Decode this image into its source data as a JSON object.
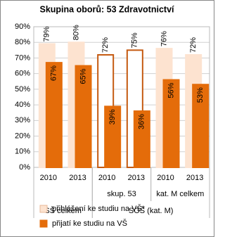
{
  "chart_data": {
    "type": "bar",
    "title": "Skupina oborů: 53 Zdravotnictví",
    "categories": [
      "2010",
      "2013",
      "2010",
      "2013",
      "2010",
      "2013"
    ],
    "group_rows": [
      [
        {
          "label": "skup. 53",
          "span": [
            2,
            3
          ]
        },
        {
          "label": "kat. M celkem",
          "span": [
            4,
            5
          ]
        }
      ],
      [
        {
          "label": "SŠ celkem",
          "span": [
            0,
            1
          ]
        },
        {
          "label": "SOŠ (kat. M)",
          "span": [
            2,
            5
          ]
        }
      ]
    ],
    "series": [
      {
        "name": "přihlášení ke studiu na VŠ*",
        "color": "#fde3d0",
        "point_colors": [
          "#fde3d0",
          "#fde3d0",
          "#ffffff",
          "#ffffff",
          "#fde3d0",
          "#fde3d0"
        ],
        "edge_colors": [
          "#fde3d0",
          "#fde3d0",
          "#c55a11",
          "#c55a11",
          "#fde3d0",
          "#fde3d0"
        ],
        "values": [
          79,
          80,
          72,
          75,
          76,
          72
        ],
        "value_labels": [
          "79%",
          "80%",
          "72%",
          "75%",
          "76%",
          "72%"
        ]
      },
      {
        "name": "přijatí ke studiu na VŠ",
        "color": "#e46c0a",
        "values": [
          67,
          65,
          39,
          36,
          56,
          53
        ],
        "value_labels": [
          "67%",
          "65%",
          "39%",
          "36%",
          "56%",
          "53%"
        ]
      }
    ],
    "ylim": [
      0,
      90
    ],
    "yticks": [
      {
        "value": 0,
        "label": "0%"
      },
      {
        "value": 10,
        "label": "10%"
      },
      {
        "value": 20,
        "label": "20%"
      },
      {
        "value": 30,
        "label": "30%"
      },
      {
        "value": 40,
        "label": "40%"
      },
      {
        "value": 50,
        "label": "50%"
      },
      {
        "value": 60,
        "label": "60%"
      },
      {
        "value": 70,
        "label": "70%"
      },
      {
        "value": 80,
        "label": "80%"
      },
      {
        "value": 90,
        "label": "90%"
      }
    ],
    "grid": true
  }
}
